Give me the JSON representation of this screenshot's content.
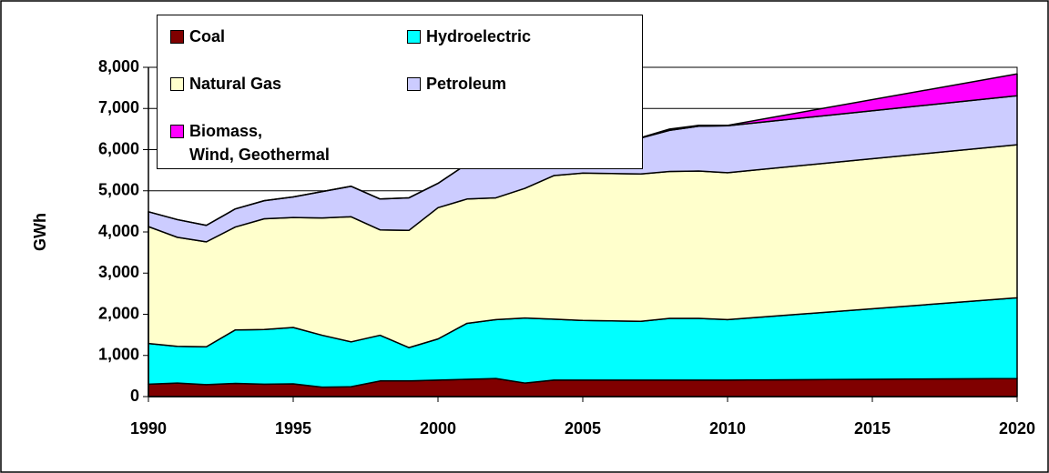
{
  "chart_data": {
    "type": "stacked_area",
    "y_label": "GWh",
    "x": [
      1990,
      1991,
      1992,
      1993,
      1994,
      1995,
      1996,
      1997,
      1998,
      1999,
      2000,
      2001,
      2002,
      2003,
      2004,
      2005,
      2006,
      2007,
      2008,
      2009,
      2010,
      2020
    ],
    "xlim": [
      1990,
      2020
    ],
    "xticks": [
      1990,
      1995,
      2000,
      2005,
      2010,
      2015,
      2020
    ],
    "ylim": [
      0,
      8000
    ],
    "yticks": [
      0,
      {
        "value": 1000,
        "label": "1,000"
      },
      {
        "value": 2000,
        "label": "2,000"
      },
      {
        "value": 3000,
        "label": "3,000"
      },
      {
        "value": 4000,
        "label": "4,000"
      },
      {
        "value": 5000,
        "label": "5,000"
      },
      {
        "value": 6000,
        "label": "6,000"
      },
      {
        "value": 7000,
        "label": "7,000"
      },
      {
        "value": 8000,
        "label": "8,000"
      }
    ],
    "grid": true,
    "series": [
      {
        "name": "Coal",
        "color": "#800000",
        "values": [
          300,
          330,
          290,
          320,
          300,
          310,
          230,
          240,
          380,
          380,
          400,
          420,
          440,
          330,
          400,
          400,
          400,
          400,
          400,
          400,
          400,
          440
        ]
      },
      {
        "name": "Hydroelectric",
        "color": "#00ffff",
        "values": [
          990,
          890,
          920,
          1300,
          1330,
          1370,
          1260,
          1090,
          1110,
          810,
          1000,
          1360,
          1430,
          1580,
          1480,
          1450,
          1440,
          1430,
          1500,
          1500,
          1470,
          1960
        ]
      },
      {
        "name": "Natural Gas",
        "color": "#ffffcc",
        "values": [
          2840,
          2650,
          2550,
          2500,
          2690,
          2670,
          2850,
          3040,
          2560,
          2850,
          3190,
          3020,
          2960,
          3150,
          3490,
          3580,
          3580,
          3580,
          3570,
          3580,
          3570,
          3720
        ]
      },
      {
        "name": "Petroleum",
        "color": "#ccccff",
        "values": [
          360,
          430,
          400,
          440,
          440,
          500,
          640,
          740,
          750,
          790,
          590,
          850,
          890,
          780,
          690,
          690,
          780,
          870,
          1000,
          1090,
          1140,
          1190
        ]
      },
      {
        "name": "Biomass,\nWind, Geothermal",
        "color": "#ff00ff",
        "values": [
          0,
          0,
          0,
          0,
          0,
          0,
          0,
          0,
          0,
          0,
          0,
          0,
          0,
          0,
          0,
          0,
          0,
          10,
          30,
          20,
          10,
          530
        ]
      }
    ]
  }
}
